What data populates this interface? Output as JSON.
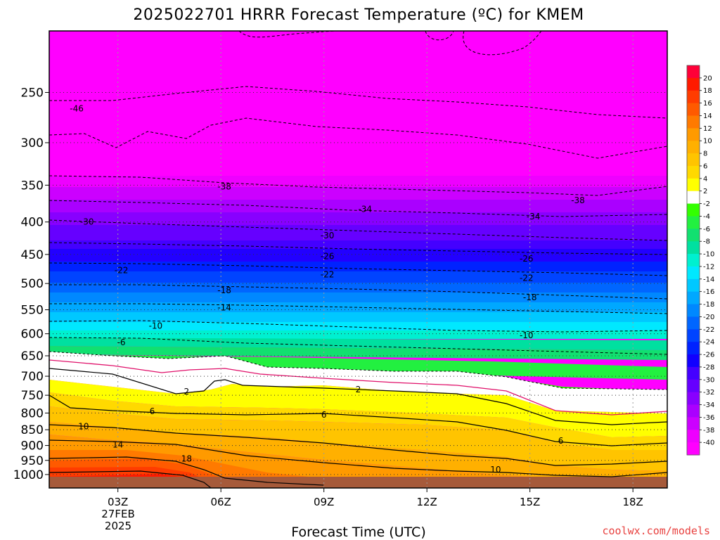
{
  "title": "2025022701 HRRR Forecast Temperature (ºC) for KMEM",
  "xlabel": "Forecast Time (UTC)",
  "credit": "coolwx.com/models",
  "date_label_line1": "27FEB",
  "date_label_line2": "2025",
  "chart_data": {
    "type": "heatmap",
    "title": "2025022701 HRRR Forecast Temperature (ºC) for KMEM",
    "xlabel": "Forecast Time (UTC)",
    "ylabel": "",
    "x_range_hours_utc": [
      1,
      19
    ],
    "x_ticks": [
      {
        "hour": 3,
        "label": "03Z"
      },
      {
        "hour": 6,
        "label": "06Z"
      },
      {
        "hour": 9,
        "label": "09Z"
      },
      {
        "hour": 12,
        "label": "12Z"
      },
      {
        "hour": 15,
        "label": "15Z"
      },
      {
        "hour": 18,
        "label": "18Z"
      }
    ],
    "y_axis": "pressure (hPa), log scale, inverted",
    "y_range_hpa": [
      1050,
      200
    ],
    "y_ticks": [
      250,
      300,
      350,
      400,
      450,
      500,
      550,
      600,
      650,
      700,
      750,
      800,
      850,
      900,
      950,
      1000
    ],
    "grid": true,
    "colorbar": {
      "position": "right",
      "labels": [
        "20",
        "18",
        "16",
        "14",
        "12",
        "10",
        "8",
        "6",
        "4",
        "2",
        "-2",
        "-4",
        "-6",
        "-8",
        "-10",
        "-12",
        "-14",
        "-16",
        "-18",
        "-20",
        "-22",
        "-24",
        "-26",
        "-28",
        "-30",
        "-32",
        "-34",
        "-36",
        "-38",
        "-40"
      ],
      "colors": [
        "#ff0038",
        "#ff1a00",
        "#ff3c00",
        "#ff5a00",
        "#ff7a00",
        "#ff9a00",
        "#ffb000",
        "#ffc400",
        "#ffd900",
        "#ffff00",
        "#ffffff",
        "#33ff00",
        "#22f040",
        "#11e070",
        "#00e0a0",
        "#00f0d0",
        "#00e8ff",
        "#00c8ff",
        "#00a8ff",
        "#0088ff",
        "#0066ff",
        "#0044ff",
        "#0022ff",
        "#1100ff",
        "#4400ff",
        "#6600ff",
        "#8800ff",
        "#aa00ff",
        "#cc00ff",
        "#ee00ff",
        "#ff00ff"
      ]
    },
    "contour_labels": [
      {
        "value": -46,
        "hour": 1.8,
        "pressure": 265
      },
      {
        "value": -38,
        "hour": 6.1,
        "pressure": 352
      },
      {
        "value": -38,
        "hour": 16.4,
        "pressure": 370
      },
      {
        "value": -34,
        "hour": 10.2,
        "pressure": 382
      },
      {
        "value": -34,
        "hour": 15.1,
        "pressure": 392
      },
      {
        "value": -30,
        "hour": 2.1,
        "pressure": 400
      },
      {
        "value": -30,
        "hour": 9.1,
        "pressure": 420
      },
      {
        "value": -26,
        "hour": 9.1,
        "pressure": 453
      },
      {
        "value": -26,
        "hour": 14.9,
        "pressure": 457
      },
      {
        "value": -22,
        "hour": 3.1,
        "pressure": 477
      },
      {
        "value": -22,
        "hour": 9.1,
        "pressure": 484
      },
      {
        "value": -22,
        "hour": 14.9,
        "pressure": 490
      },
      {
        "value": -18,
        "hour": 6.1,
        "pressure": 513
      },
      {
        "value": -18,
        "hour": 15.0,
        "pressure": 526
      },
      {
        "value": -14,
        "hour": 6.1,
        "pressure": 546
      },
      {
        "value": -10,
        "hour": 4.1,
        "pressure": 583
      },
      {
        "value": -10,
        "hour": 14.9,
        "pressure": 604
      },
      {
        "value": -6,
        "hour": 3.1,
        "pressure": 619
      },
      {
        "value": 2,
        "hour": 5.0,
        "pressure": 740
      },
      {
        "value": 2,
        "hour": 10.0,
        "pressure": 735
      },
      {
        "value": 6,
        "hour": 4.0,
        "pressure": 795
      },
      {
        "value": 6,
        "hour": 9.0,
        "pressure": 805
      },
      {
        "value": 6,
        "hour": 15.9,
        "pressure": 885
      },
      {
        "value": 10,
        "hour": 2.0,
        "pressure": 840
      },
      {
        "value": 10,
        "hour": 14.0,
        "pressure": 983
      },
      {
        "value": 14,
        "hour": 3.0,
        "pressure": 898
      },
      {
        "value": 18,
        "hour": 5.0,
        "pressure": 945
      }
    ]
  }
}
